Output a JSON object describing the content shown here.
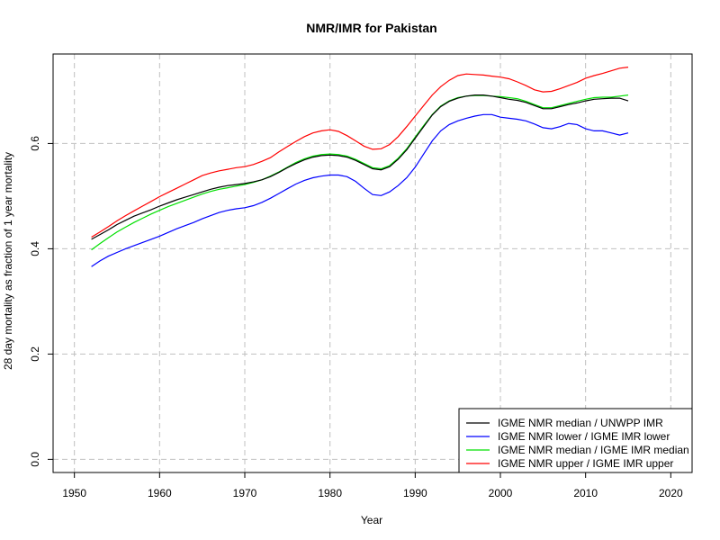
{
  "chart_data": {
    "type": "line",
    "title": "NMR/IMR for Pakistan",
    "xlabel": "Year",
    "ylabel": "28 day mortality as fraction of 1 year mortality",
    "xlim": [
      1947.5,
      2022.5
    ],
    "ylim": [
      -0.025,
      0.77
    ],
    "x_ticks": [
      1950,
      1960,
      1970,
      1980,
      1990,
      2000,
      2010,
      2020
    ],
    "x_tick_labels": [
      "1950",
      "1960",
      "1970",
      "1980",
      "1990",
      "2000",
      "2010",
      "2020"
    ],
    "y_ticks": [
      0.0,
      0.2,
      0.4,
      0.6
    ],
    "y_tick_labels": [
      "0.0",
      "0.2",
      "0.4",
      "0.6"
    ],
    "grid": true,
    "legend_position": "bottom-right",
    "x": [
      1952,
      1953,
      1954,
      1955,
      1956,
      1957,
      1958,
      1959,
      1960,
      1961,
      1962,
      1963,
      1964,
      1965,
      1966,
      1967,
      1968,
      1969,
      1970,
      1971,
      1972,
      1973,
      1974,
      1975,
      1976,
      1977,
      1978,
      1979,
      1980,
      1981,
      1982,
      1983,
      1984,
      1985,
      1986,
      1987,
      1988,
      1989,
      1990,
      1991,
      1992,
      1993,
      1994,
      1995,
      1996,
      1997,
      1998,
      1999,
      2000,
      2001,
      2002,
      2003,
      2004,
      2005,
      2006,
      2007,
      2008,
      2009,
      2010,
      2011,
      2012,
      2013,
      2014,
      2015
    ],
    "series": [
      {
        "name": "IGME NMR median / UNWPP IMR",
        "color": "#000000",
        "values": [
          0.418,
          0.427,
          0.436,
          0.446,
          0.454,
          0.462,
          0.468,
          0.474,
          0.481,
          0.487,
          0.493,
          0.498,
          0.503,
          0.508,
          0.513,
          0.517,
          0.52,
          0.522,
          0.524,
          0.527,
          0.531,
          0.537,
          0.545,
          0.554,
          0.562,
          0.569,
          0.574,
          0.577,
          0.578,
          0.577,
          0.574,
          0.568,
          0.56,
          0.552,
          0.55,
          0.556,
          0.57,
          0.588,
          0.61,
          0.632,
          0.654,
          0.67,
          0.68,
          0.686,
          0.69,
          0.692,
          0.692,
          0.69,
          0.687,
          0.684,
          0.682,
          0.678,
          0.672,
          0.666,
          0.666,
          0.67,
          0.674,
          0.677,
          0.681,
          0.684,
          0.685,
          0.686,
          0.686,
          0.681
        ]
      },
      {
        "name": "IGME NMR lower / IGME IMR lower",
        "color": "#0000ff",
        "values": [
          0.366,
          0.377,
          0.386,
          0.393,
          0.4,
          0.406,
          0.412,
          0.418,
          0.424,
          0.431,
          0.438,
          0.444,
          0.45,
          0.457,
          0.463,
          0.469,
          0.473,
          0.476,
          0.478,
          0.482,
          0.488,
          0.496,
          0.505,
          0.514,
          0.523,
          0.53,
          0.535,
          0.538,
          0.54,
          0.54,
          0.537,
          0.528,
          0.515,
          0.503,
          0.501,
          0.508,
          0.52,
          0.535,
          0.555,
          0.58,
          0.605,
          0.624,
          0.636,
          0.643,
          0.648,
          0.652,
          0.655,
          0.655,
          0.65,
          0.648,
          0.646,
          0.643,
          0.637,
          0.63,
          0.628,
          0.632,
          0.638,
          0.636,
          0.628,
          0.624,
          0.624,
          0.62,
          0.616,
          0.62
        ]
      },
      {
        "name": "IGME NMR median / IGME IMR median",
        "color": "#00e000",
        "values": [
          0.398,
          0.41,
          0.421,
          0.432,
          0.441,
          0.45,
          0.458,
          0.466,
          0.473,
          0.48,
          0.486,
          0.492,
          0.498,
          0.504,
          0.509,
          0.513,
          0.516,
          0.519,
          0.522,
          0.526,
          0.531,
          0.538,
          0.546,
          0.555,
          0.564,
          0.571,
          0.576,
          0.579,
          0.58,
          0.579,
          0.576,
          0.57,
          0.562,
          0.554,
          0.552,
          0.558,
          0.572,
          0.59,
          0.612,
          0.634,
          0.655,
          0.671,
          0.681,
          0.687,
          0.69,
          0.691,
          0.691,
          0.69,
          0.689,
          0.687,
          0.685,
          0.68,
          0.674,
          0.668,
          0.668,
          0.672,
          0.676,
          0.68,
          0.684,
          0.687,
          0.688,
          0.688,
          0.69,
          0.692
        ]
      },
      {
        "name": "IGME NMR upper / IGME IMR upper",
        "color": "#ff0000",
        "values": [
          0.422,
          0.432,
          0.442,
          0.453,
          0.463,
          0.472,
          0.481,
          0.49,
          0.499,
          0.507,
          0.515,
          0.523,
          0.531,
          0.539,
          0.544,
          0.548,
          0.551,
          0.554,
          0.556,
          0.56,
          0.566,
          0.573,
          0.584,
          0.594,
          0.604,
          0.613,
          0.62,
          0.624,
          0.626,
          0.623,
          0.615,
          0.605,
          0.595,
          0.589,
          0.59,
          0.598,
          0.613,
          0.632,
          0.652,
          0.672,
          0.692,
          0.708,
          0.72,
          0.729,
          0.732,
          0.731,
          0.73,
          0.728,
          0.726,
          0.723,
          0.717,
          0.71,
          0.702,
          0.698,
          0.699,
          0.704,
          0.71,
          0.716,
          0.724,
          0.729,
          0.733,
          0.738,
          0.743,
          0.745
        ]
      }
    ]
  }
}
